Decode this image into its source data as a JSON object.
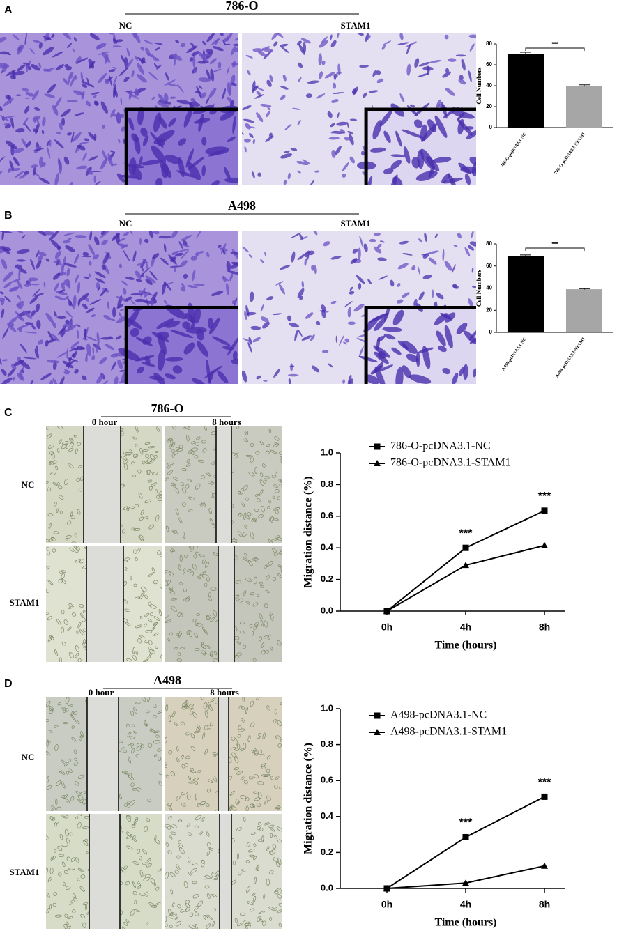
{
  "panels": [
    {
      "label": "A",
      "cell_line": "786-O",
      "columns": [
        "NC",
        "STAM1"
      ]
    },
    {
      "label": "B",
      "cell_line": "A498",
      "columns": [
        "NC",
        "STAM1"
      ]
    },
    {
      "label": "C",
      "cell_line": "786-O",
      "columns": [
        "0 hour",
        "8 hours"
      ],
      "rows": [
        "NC",
        "STAM1"
      ]
    },
    {
      "label": "D",
      "cell_line": "A498",
      "columns": [
        "0 hour",
        "8 hours"
      ],
      "rows": [
        "NC",
        "STAM1"
      ]
    }
  ],
  "chart_data": [
    {
      "type": "bar",
      "y_label": "Cell Numbers",
      "categories": [
        "786-O-pcDNA3.1-NC",
        "786-O-pcDNA3.1-STAM1"
      ],
      "values": [
        70,
        40
      ],
      "errors": [
        2,
        0.8
      ],
      "colors": [
        "#000000",
        "#a6a6a6"
      ],
      "ylim": [
        0,
        80
      ],
      "yticks": [
        0,
        20,
        40,
        60,
        80
      ],
      "significance": "***"
    },
    {
      "type": "bar",
      "y_label": "Cell Numbers",
      "categories": [
        "A498-pcDNA3.1-NC",
        "A498-pcDNA3.1-STAM1"
      ],
      "values": [
        69,
        39
      ],
      "errors": [
        1,
        0.5
      ],
      "colors": [
        "#000000",
        "#a6a6a6"
      ],
      "ylim": [
        0,
        80
      ],
      "yticks": [
        0,
        20,
        40,
        60,
        80
      ],
      "significance": "***"
    },
    {
      "type": "line",
      "x_label": "Time (hours)",
      "y_label": "Migration distance (%)",
      "categories": [
        "0h",
        "4h",
        "8h"
      ],
      "series": [
        {
          "name": "786-O-pcDNA3.1-NC",
          "color": "#000000",
          "marker": "square",
          "values": [
            0,
            0.4,
            0.635
          ]
        },
        {
          "name": "786-O-pcDNA3.1-STAM1",
          "color": "#000000",
          "marker": "triangle",
          "values": [
            0,
            0.29,
            0.415
          ]
        }
      ],
      "significance_labels": [
        null,
        "***",
        "***"
      ],
      "ylim": [
        0,
        1
      ],
      "yticks": [
        {
          "value": 0,
          "label": "0.0"
        },
        {
          "value": 0.2,
          "label": "0.2"
        },
        {
          "value": 0.4,
          "label": "0.4"
        },
        {
          "value": 0.6,
          "label": "0.6"
        },
        {
          "value": 0.8,
          "label": "0.8"
        },
        {
          "value": 1,
          "label": "1.0"
        }
      ],
      "legend": "upper left"
    },
    {
      "type": "line",
      "x_label": "Time (hours)",
      "y_label": "Migration distance (%)",
      "categories": [
        "0h",
        "4h",
        "8h"
      ],
      "series": [
        {
          "name": "A498-pcDNA3.1-NC",
          "color": "#000000",
          "marker": "square",
          "values": [
            0,
            0.285,
            0.51
          ]
        },
        {
          "name": "A498-pcDNA3.1-STAM1",
          "color": "#000000",
          "marker": "triangle",
          "values": [
            0,
            0.03,
            0.125
          ]
        }
      ],
      "significance_labels": [
        null,
        "***",
        "***"
      ],
      "ylim": [
        0,
        1
      ],
      "yticks": [
        {
          "value": 0,
          "label": "0.0"
        },
        {
          "value": 0.2,
          "label": "0.2"
        },
        {
          "value": 0.4,
          "label": "0.4"
        },
        {
          "value": 0.6,
          "label": "0.6"
        },
        {
          "value": 0.8,
          "label": "0.8"
        },
        {
          "value": 1,
          "label": "1.0"
        }
      ],
      "legend": "upper left"
    }
  ]
}
